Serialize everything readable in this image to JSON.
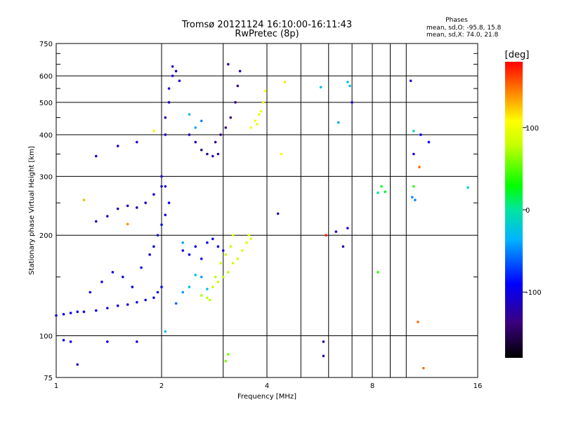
{
  "chart_data": {
    "type": "scatter",
    "title": "Tromsø 20121124 16:10:00-16:11:43",
    "subtitle": "RwPretec (8p)",
    "stats": {
      "heading": "Phases",
      "line1": "mean, sd,O: -95.8, 15.8",
      "line2": "mean, sd,X:  74.0, 21.8"
    },
    "xlabel": "Frequency [MHz]",
    "ylabel": "Stationary phase Virtual Height [km]",
    "xscale": "log",
    "yscale": "log",
    "xlim": [
      1,
      16
    ],
    "ylim": [
      75,
      750
    ],
    "xticks": [
      1,
      2,
      4,
      8,
      16
    ],
    "xtick_labels": [
      "1",
      "2",
      "4",
      "8",
      "16"
    ],
    "x_gridlines": [
      1,
      2,
      3,
      4,
      5,
      6,
      7,
      8,
      9,
      10,
      16
    ],
    "yticks": [
      75,
      100,
      200,
      300,
      400,
      500,
      600,
      750
    ],
    "ytick_labels": [
      "75",
      "100",
      "200",
      "300",
      "400",
      "500",
      "600",
      "750"
    ],
    "grid": true,
    "colorbar": {
      "label": "[deg]",
      "ticks": [
        100,
        0,
        -100
      ],
      "tick_labels": [
        "100",
        "0",
        "-100"
      ],
      "range": [
        -180,
        180
      ]
    },
    "series": [
      {
        "name": "O-mode",
        "approx_phase": -95.8,
        "points": [
          [
            1.0,
            115,
            -100
          ],
          [
            1.05,
            116,
            -100
          ],
          [
            1.1,
            117,
            -95
          ],
          [
            1.15,
            118,
            -100
          ],
          [
            1.2,
            118,
            -100
          ],
          [
            1.3,
            119,
            -95
          ],
          [
            1.4,
            121,
            -100
          ],
          [
            1.5,
            123,
            -100
          ],
          [
            1.6,
            124,
            -105
          ],
          [
            1.7,
            126,
            -100
          ],
          [
            1.8,
            128,
            -100
          ],
          [
            1.9,
            130,
            -100
          ],
          [
            1.95,
            135,
            -100
          ],
          [
            2.0,
            140,
            -95
          ],
          [
            1.25,
            135,
            -100
          ],
          [
            1.35,
            145,
            -100
          ],
          [
            1.45,
            155,
            -100
          ],
          [
            1.55,
            150,
            -105
          ],
          [
            1.65,
            140,
            -100
          ],
          [
            1.75,
            160,
            -100
          ],
          [
            1.85,
            175,
            -100
          ],
          [
            1.9,
            185,
            -100
          ],
          [
            1.95,
            200,
            -100
          ],
          [
            2.0,
            215,
            -100
          ],
          [
            2.05,
            230,
            -100
          ],
          [
            2.1,
            250,
            -100
          ],
          [
            2.05,
            280,
            -100
          ],
          [
            2.0,
            300,
            -105
          ],
          [
            1.3,
            220,
            -110
          ],
          [
            1.4,
            228,
            -110
          ],
          [
            1.5,
            240,
            -115
          ],
          [
            1.6,
            245,
            -115
          ],
          [
            1.7,
            242,
            -115
          ],
          [
            1.8,
            250,
            -110
          ],
          [
            1.9,
            265,
            -110
          ],
          [
            2.0,
            280,
            -110
          ],
          [
            2.05,
            400,
            -110
          ],
          [
            2.05,
            450,
            -115
          ],
          [
            2.1,
            500,
            -110
          ],
          [
            2.1,
            550,
            -110
          ],
          [
            2.15,
            600,
            -115
          ],
          [
            2.15,
            640,
            -115
          ],
          [
            2.2,
            620,
            -115
          ],
          [
            2.25,
            580,
            -110
          ],
          [
            2.4,
            400,
            -120
          ],
          [
            2.5,
            380,
            -120
          ],
          [
            2.6,
            360,
            -125
          ],
          [
            2.7,
            350,
            -125
          ],
          [
            2.8,
            345,
            -120
          ],
          [
            2.9,
            350,
            -125
          ],
          [
            2.85,
            380,
            -130
          ],
          [
            2.95,
            400,
            -135
          ],
          [
            3.05,
            420,
            -135
          ],
          [
            3.15,
            450,
            -135
          ],
          [
            3.25,
            500,
            -135
          ],
          [
            3.3,
            560,
            -130
          ],
          [
            3.35,
            620,
            -130
          ],
          [
            3.1,
            650,
            -135
          ],
          [
            2.3,
            180,
            -100
          ],
          [
            2.4,
            175,
            -100
          ],
          [
            2.5,
            185,
            -95
          ],
          [
            2.6,
            170,
            -100
          ],
          [
            2.7,
            190,
            -95
          ],
          [
            2.8,
            195,
            -100
          ],
          [
            2.9,
            185,
            -100
          ],
          [
            3.0,
            180,
            -105
          ],
          [
            1.05,
            97,
            -100
          ],
          [
            1.1,
            96,
            -100
          ],
          [
            1.4,
            96,
            -105
          ],
          [
            1.7,
            96,
            -105
          ],
          [
            1.15,
            82,
            -110
          ],
          [
            4.3,
            232,
            -120
          ],
          [
            5.8,
            96,
            -130
          ],
          [
            5.8,
            87,
            -130
          ],
          [
            6.3,
            205,
            -110
          ],
          [
            6.6,
            185,
            -125
          ],
          [
            6.8,
            210,
            -110
          ],
          [
            7.0,
            500,
            -100
          ],
          [
            10.3,
            580,
            -115
          ],
          [
            11.0,
            400,
            -100
          ],
          [
            11.6,
            380,
            -90
          ],
          [
            10.5,
            350,
            -105
          ],
          [
            1.3,
            345,
            -105
          ],
          [
            1.5,
            370,
            -110
          ],
          [
            1.7,
            380,
            -110
          ]
        ]
      },
      {
        "name": "X-mode",
        "approx_phase": 74.0,
        "points": [
          [
            2.8,
            140,
            80
          ],
          [
            2.9,
            145,
            80
          ],
          [
            3.0,
            150,
            75
          ],
          [
            3.1,
            155,
            75
          ],
          [
            3.2,
            165,
            80
          ],
          [
            3.3,
            170,
            85
          ],
          [
            3.4,
            180,
            90
          ],
          [
            3.5,
            190,
            90
          ],
          [
            3.6,
            195,
            90
          ],
          [
            3.55,
            200,
            85
          ],
          [
            3.2,
            200,
            85
          ],
          [
            3.15,
            185,
            80
          ],
          [
            3.05,
            175,
            80
          ],
          [
            2.95,
            165,
            80
          ],
          [
            2.85,
            150,
            75
          ],
          [
            2.7,
            130,
            75
          ],
          [
            2.6,
            132,
            70
          ],
          [
            2.75,
            128,
            75
          ],
          [
            3.6,
            420,
            100
          ],
          [
            3.7,
            440,
            100
          ],
          [
            3.8,
            460,
            95
          ],
          [
            3.9,
            500,
            100
          ],
          [
            3.95,
            540,
            105
          ],
          [
            3.85,
            470,
            100
          ],
          [
            3.75,
            430,
            95
          ],
          [
            3.1,
            88,
            55
          ],
          [
            3.05,
            84,
            60
          ],
          [
            4.5,
            575,
            115
          ],
          [
            4.4,
            350,
            110
          ],
          [
            8.3,
            155,
            40
          ],
          [
            8.5,
            280,
            30
          ],
          [
            8.7,
            270,
            20
          ],
          [
            10.5,
            280,
            40
          ],
          [
            1.2,
            255,
            130
          ],
          [
            1.6,
            216,
            140
          ],
          [
            10.8,
            110,
            150
          ],
          [
            10.9,
            320,
            150
          ],
          [
            11.2,
            80,
            150
          ],
          [
            5.9,
            200,
            175
          ],
          [
            1.9,
            410,
            110
          ]
        ]
      },
      {
        "name": "other",
        "approx_phase": 0,
        "points": [
          [
            2.4,
            140,
            -30
          ],
          [
            2.5,
            152,
            -20
          ],
          [
            2.6,
            150,
            -40
          ],
          [
            2.7,
            138,
            -25
          ],
          [
            2.3,
            135,
            -45
          ],
          [
            2.5,
            420,
            -40
          ],
          [
            2.6,
            440,
            -50
          ],
          [
            2.4,
            460,
            -30
          ],
          [
            2.3,
            190,
            -40
          ],
          [
            2.2,
            125,
            -60
          ],
          [
            2.05,
            103,
            -30
          ],
          [
            5.7,
            555,
            -30
          ],
          [
            6.8,
            575,
            -30
          ],
          [
            6.9,
            560,
            -30
          ],
          [
            6.4,
            435,
            -40
          ],
          [
            15.0,
            278,
            -20
          ],
          [
            10.4,
            260,
            -50
          ],
          [
            10.6,
            255,
            -50
          ],
          [
            8.3,
            268,
            0
          ],
          [
            10.5,
            410,
            -10
          ]
        ]
      }
    ]
  }
}
